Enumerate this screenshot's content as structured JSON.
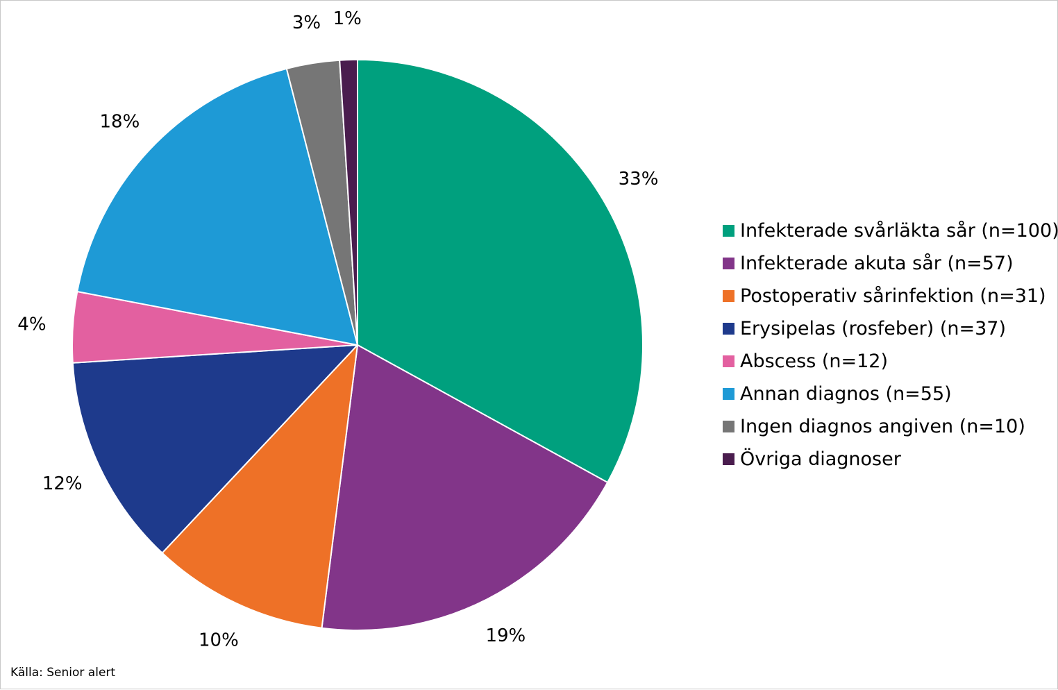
{
  "chart_data": {
    "type": "pie",
    "title": "",
    "start_angle_deg": 0,
    "direction": "clockwise",
    "slices": [
      {
        "name": "Infekterade svårläkta sår (n=100)",
        "value": 33,
        "label": "33%",
        "color": "#00A07E"
      },
      {
        "name": "Infekterade akuta sår (n=57)",
        "value": 19,
        "label": "19%",
        "color": "#823589"
      },
      {
        "name": "Postoperativ sårinfektion (n=31)",
        "value": 10,
        "label": "10%",
        "color": "#EE7127"
      },
      {
        "name": "Erysipelas (rosfeber) (n=37)",
        "value": 12,
        "label": "12%",
        "color": "#1E3A8C"
      },
      {
        "name": "Abscess (n=12)",
        "value": 4,
        "label": "4%",
        "color": "#E360A0"
      },
      {
        "name": "Annan diagnos (n=55)",
        "value": 18,
        "label": "18%",
        "color": "#1E9AD6"
      },
      {
        "name": "Ingen diagnos angiven (n=10)",
        "value": 3,
        "label": "3%",
        "color": "#767676"
      },
      {
        "name": "Övriga diagnoser",
        "value": 1,
        "label": "1%",
        "color": "#4A1D4E"
      }
    ],
    "legend_position": "right"
  },
  "source_text": "Källa: Senior alert"
}
